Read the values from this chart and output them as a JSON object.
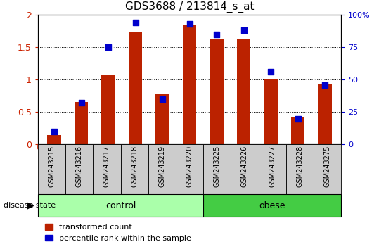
{
  "title": "GDS3688 / 213814_s_at",
  "samples": [
    "GSM243215",
    "GSM243216",
    "GSM243217",
    "GSM243218",
    "GSM243219",
    "GSM243220",
    "GSM243225",
    "GSM243226",
    "GSM243227",
    "GSM243228",
    "GSM243275"
  ],
  "red_values": [
    0.15,
    0.65,
    1.08,
    1.73,
    0.77,
    1.85,
    1.62,
    1.62,
    1.0,
    0.42,
    0.93
  ],
  "blue_pct": [
    10,
    32,
    75,
    94,
    35,
    93,
    85,
    88,
    56,
    20,
    46
  ],
  "control_count": 6,
  "obese_count": 5,
  "disease_label": "disease state",
  "ylim_left": [
    0,
    2
  ],
  "ylim_right": [
    0,
    100
  ],
  "yticks_left": [
    0,
    0.5,
    1.0,
    1.5,
    2.0
  ],
  "ytick_left_labels": [
    "0",
    "0.5",
    "1",
    "1.5",
    "2"
  ],
  "yticks_right": [
    0,
    25,
    50,
    75,
    100
  ],
  "ytick_right_labels": [
    "0",
    "25",
    "50",
    "75",
    "100%"
  ],
  "bar_color": "#bb2200",
  "dot_color": "#0000cc",
  "bar_width": 0.5,
  "dot_size": 28,
  "legend_red": "transformed count",
  "legend_blue": "percentile rank within the sample",
  "sample_box_color": "#cccccc",
  "control_color": "#aaffaa",
  "obese_color": "#44cc44",
  "group_border_color": "#000000"
}
